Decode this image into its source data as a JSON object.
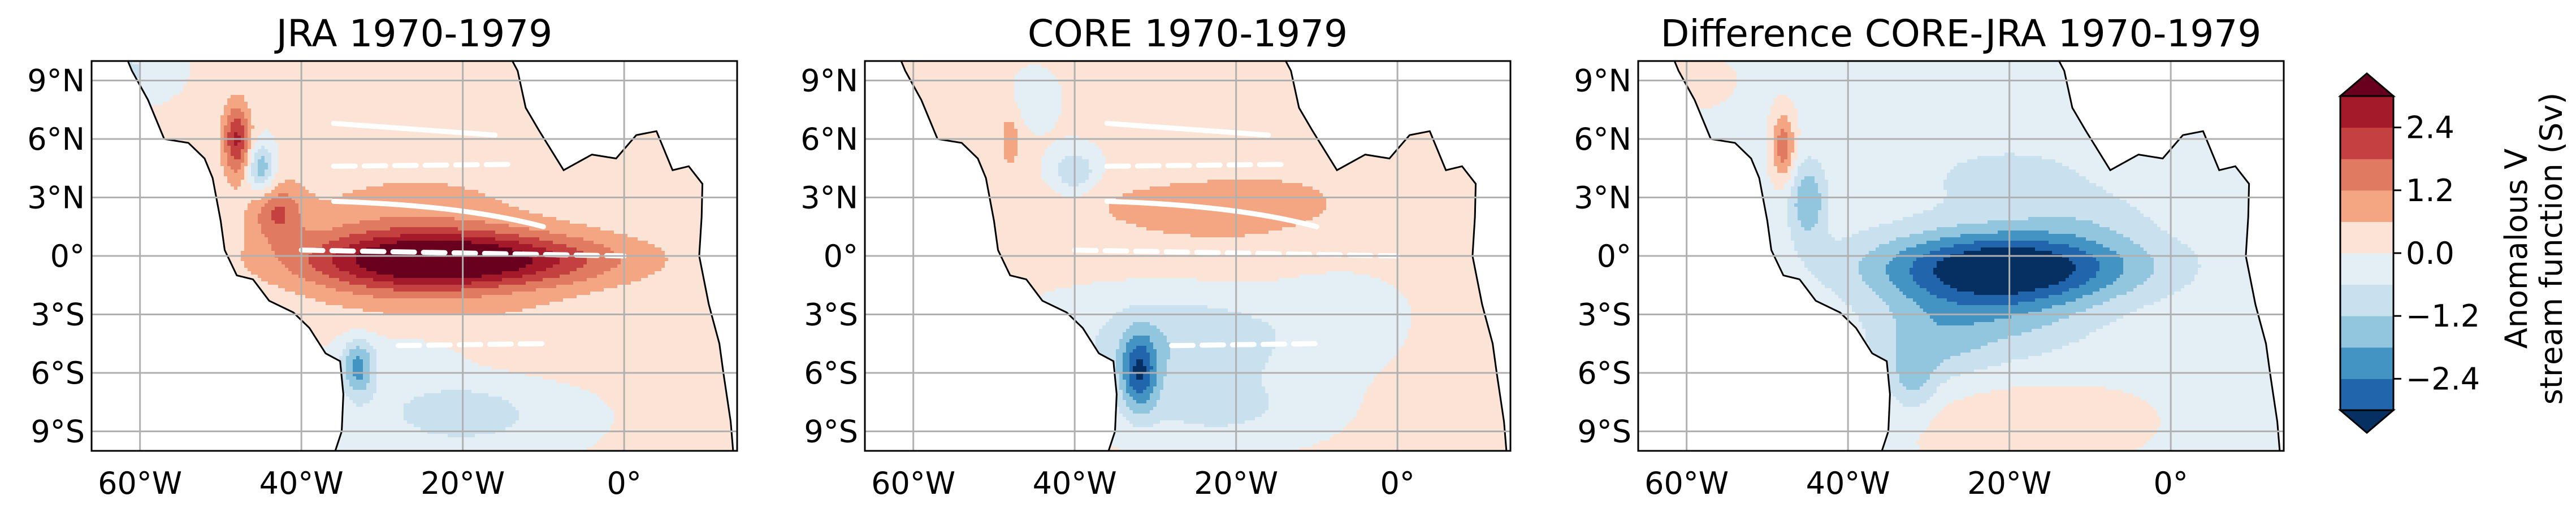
{
  "chart_data": {
    "type": "heatmap",
    "panels": [
      {
        "title": "JRA 1970-1979",
        "xticks": [
          "60°W",
          "40°W",
          "20°W",
          "0°"
        ],
        "yticks": [
          "9°N",
          "6°N",
          "3°N",
          "0°",
          "3°S",
          "6°S",
          "9°S"
        ],
        "xlim": [
          -66,
          14
        ],
        "ylim": [
          -10,
          10
        ],
        "features": [
          {
            "lon": -20,
            "lat": -0.2,
            "slon": 13,
            "slat": 1.0,
            "value": 3.2
          },
          {
            "lon": -28,
            "lat": -0.5,
            "slon": 9,
            "slat": 1.8,
            "value": 1.1
          },
          {
            "lon": -43,
            "lat": 2.2,
            "slon": 2.2,
            "slat": 1.0,
            "value": 1.5
          },
          {
            "lon": -48,
            "lat": 6.0,
            "slon": 1.2,
            "slat": 1.3,
            "value": 2.4
          },
          {
            "lon": -45,
            "lat": 4.5,
            "slon": 1.2,
            "slat": 0.9,
            "value": -1.8
          },
          {
            "lon": -33,
            "lat": -5.8,
            "slon": 1.4,
            "slat": 1.0,
            "value": -2.0
          },
          {
            "lon": -20,
            "lat": -8.0,
            "slon": 9,
            "slat": 1.5,
            "value": -1.0
          },
          {
            "lon": -25,
            "lat": 2.8,
            "slon": 14,
            "slat": 1.8,
            "value": 0.5
          },
          {
            "lon": -62,
            "lat": 9.5,
            "slon": 4,
            "slat": 1.0,
            "value": -0.8
          },
          {
            "lon": -12,
            "lat": -4.0,
            "slon": 8,
            "slat": 2.0,
            "value": 0.35
          },
          {
            "lon": -28,
            "lat": -4.8,
            "slon": 6,
            "slat": 0.6,
            "value": -0.4
          }
        ]
      },
      {
        "title": "CORE 1970-1979",
        "xticks": [
          "60°W",
          "40°W",
          "20°W",
          "0°"
        ],
        "yticks": [
          "9°N",
          "6°N",
          "3°N",
          "0°",
          "3°S",
          "6°S",
          "9°S"
        ],
        "xlim": [
          -66,
          14
        ],
        "ylim": [
          -10,
          10
        ],
        "features": [
          {
            "lon": -25,
            "lat": 2.5,
            "slon": 11,
            "slat": 1.1,
            "value": 0.8
          },
          {
            "lon": -25,
            "lat": -0.2,
            "slon": 14,
            "slat": 1.0,
            "value": 0.3
          },
          {
            "lon": -27,
            "lat": -4.5,
            "slon": 10,
            "slat": 2.0,
            "value": -1.2
          },
          {
            "lon": -32,
            "lat": -6.0,
            "slon": 1.6,
            "slat": 1.4,
            "value": -2.4
          },
          {
            "lon": -22,
            "lat": -8.0,
            "slon": 8,
            "slat": 1.2,
            "value": -0.7
          },
          {
            "lon": -40,
            "lat": 4.3,
            "slon": 2.0,
            "slat": 0.8,
            "value": -1.3
          },
          {
            "lon": -48,
            "lat": 6.0,
            "slon": 1.0,
            "slat": 1.2,
            "value": 0.8
          },
          {
            "lon": -45,
            "lat": 8.0,
            "slon": 2.0,
            "slat": 1.0,
            "value": -0.5
          },
          {
            "lon": -10,
            "lat": 5.0,
            "slon": 10,
            "slat": 4.0,
            "value": 0.3
          },
          {
            "lon": -8,
            "lat": -2.5,
            "slon": 6,
            "slat": 2.0,
            "value": -0.4
          }
        ]
      },
      {
        "title": "Difference CORE-JRA 1970-1979",
        "xticks": [
          "60°W",
          "40°W",
          "20°W",
          "0°"
        ],
        "yticks": [
          "9°N",
          "6°N",
          "3°N",
          "0°",
          "3°S",
          "6°S",
          "9°S"
        ],
        "xlim": [
          -66,
          14
        ],
        "ylim": [
          -10,
          10
        ],
        "features": [
          {
            "lon": -20,
            "lat": -0.5,
            "slon": 12,
            "slat": 1.3,
            "value": -3.0
          },
          {
            "lon": -22,
            "lat": -2.5,
            "slon": 9,
            "slat": 2.0,
            "value": -1.3
          },
          {
            "lon": -30,
            "lat": -4.5,
            "slon": 5,
            "slat": 1.5,
            "value": -0.8
          },
          {
            "lon": -45,
            "lat": 2.8,
            "slon": 1.6,
            "slat": 1.4,
            "value": -1.6
          },
          {
            "lon": -48,
            "lat": 5.6,
            "slon": 1.0,
            "slat": 1.2,
            "value": 1.8
          },
          {
            "lon": -20,
            "lat": 4.0,
            "slon": 10,
            "slat": 1.6,
            "value": -0.6
          },
          {
            "lon": -18,
            "lat": -8.5,
            "slon": 10,
            "slat": 1.5,
            "value": 0.6
          },
          {
            "lon": -60,
            "lat": 9.0,
            "slon": 4,
            "slat": 1.0,
            "value": 0.5
          },
          {
            "lon": -10,
            "lat": 2.0,
            "slon": 6,
            "slat": 1.0,
            "value": -0.4
          },
          {
            "lon": -32,
            "lat": -6.5,
            "slon": 2.0,
            "slat": 1.2,
            "value": -1.0
          }
        ]
      }
    ],
    "colorbar": {
      "label_lines": [
        "Anomalous V",
        "stream function (Sv)"
      ],
      "levels": [
        -3.0,
        -2.4,
        -1.8,
        -1.2,
        -0.6,
        0.0,
        0.6,
        1.2,
        1.8,
        2.4,
        3.0
      ],
      "ticks": [
        "−2.4",
        "−1.2",
        "0.0",
        "1.2",
        "2.4"
      ],
      "extend": "both",
      "colors": [
        "#053061",
        "#2166ac",
        "#4393c3",
        "#92c5de",
        "#c9e1ee",
        "#e4eef5",
        "#fbe3d6",
        "#f4a582",
        "#e07b61",
        "#c5413f",
        "#a51a2b",
        "#67001f"
      ]
    },
    "grid": true
  }
}
